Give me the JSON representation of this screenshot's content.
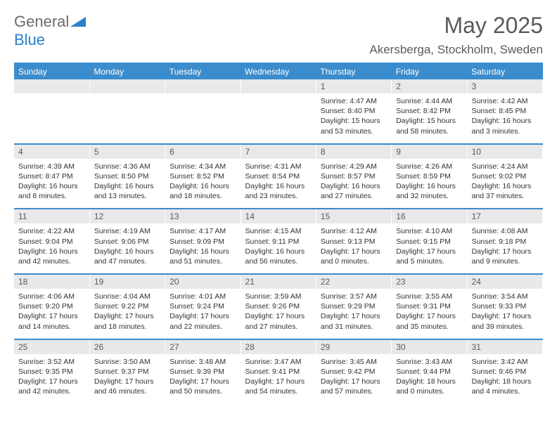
{
  "colors": {
    "accent": "#3b8ccc",
    "header_bg": "#3b8ccc",
    "header_text": "#ffffff",
    "daynum_bg": "#e9e9e9",
    "daynum_text": "#5a5a5a",
    "body_text": "#333333",
    "logo_gray": "#6b6b6b",
    "logo_blue": "#2a7fc9",
    "title_color": "#5a5a5a"
  },
  "logo": {
    "part1": "General",
    "part2": "Blue"
  },
  "title": "May 2025",
  "location": "Akersberga, Stockholm, Sweden",
  "weekdays": [
    "Sunday",
    "Monday",
    "Tuesday",
    "Wednesday",
    "Thursday",
    "Friday",
    "Saturday"
  ],
  "layout": {
    "first_weekday_index": 4,
    "num_days": 31,
    "columns": 7,
    "rows": 5,
    "daynum_fontsize": 12,
    "body_fontsize": 10.5,
    "header_fontsize": 12
  },
  "days": [
    {
      "n": 1,
      "sunrise": "4:47 AM",
      "sunset": "8:40 PM",
      "daylight": "15 hours and 53 minutes."
    },
    {
      "n": 2,
      "sunrise": "4:44 AM",
      "sunset": "8:42 PM",
      "daylight": "15 hours and 58 minutes."
    },
    {
      "n": 3,
      "sunrise": "4:42 AM",
      "sunset": "8:45 PM",
      "daylight": "16 hours and 3 minutes."
    },
    {
      "n": 4,
      "sunrise": "4:39 AM",
      "sunset": "8:47 PM",
      "daylight": "16 hours and 8 minutes."
    },
    {
      "n": 5,
      "sunrise": "4:36 AM",
      "sunset": "8:50 PM",
      "daylight": "16 hours and 13 minutes."
    },
    {
      "n": 6,
      "sunrise": "4:34 AM",
      "sunset": "8:52 PM",
      "daylight": "16 hours and 18 minutes."
    },
    {
      "n": 7,
      "sunrise": "4:31 AM",
      "sunset": "8:54 PM",
      "daylight": "16 hours and 23 minutes."
    },
    {
      "n": 8,
      "sunrise": "4:29 AM",
      "sunset": "8:57 PM",
      "daylight": "16 hours and 27 minutes."
    },
    {
      "n": 9,
      "sunrise": "4:26 AM",
      "sunset": "8:59 PM",
      "daylight": "16 hours and 32 minutes."
    },
    {
      "n": 10,
      "sunrise": "4:24 AM",
      "sunset": "9:02 PM",
      "daylight": "16 hours and 37 minutes."
    },
    {
      "n": 11,
      "sunrise": "4:22 AM",
      "sunset": "9:04 PM",
      "daylight": "16 hours and 42 minutes."
    },
    {
      "n": 12,
      "sunrise": "4:19 AM",
      "sunset": "9:06 PM",
      "daylight": "16 hours and 47 minutes."
    },
    {
      "n": 13,
      "sunrise": "4:17 AM",
      "sunset": "9:09 PM",
      "daylight": "16 hours and 51 minutes."
    },
    {
      "n": 14,
      "sunrise": "4:15 AM",
      "sunset": "9:11 PM",
      "daylight": "16 hours and 56 minutes."
    },
    {
      "n": 15,
      "sunrise": "4:12 AM",
      "sunset": "9:13 PM",
      "daylight": "17 hours and 0 minutes."
    },
    {
      "n": 16,
      "sunrise": "4:10 AM",
      "sunset": "9:15 PM",
      "daylight": "17 hours and 5 minutes."
    },
    {
      "n": 17,
      "sunrise": "4:08 AM",
      "sunset": "9:18 PM",
      "daylight": "17 hours and 9 minutes."
    },
    {
      "n": 18,
      "sunrise": "4:06 AM",
      "sunset": "9:20 PM",
      "daylight": "17 hours and 14 minutes."
    },
    {
      "n": 19,
      "sunrise": "4:04 AM",
      "sunset": "9:22 PM",
      "daylight": "17 hours and 18 minutes."
    },
    {
      "n": 20,
      "sunrise": "4:01 AM",
      "sunset": "9:24 PM",
      "daylight": "17 hours and 22 minutes."
    },
    {
      "n": 21,
      "sunrise": "3:59 AM",
      "sunset": "9:26 PM",
      "daylight": "17 hours and 27 minutes."
    },
    {
      "n": 22,
      "sunrise": "3:57 AM",
      "sunset": "9:29 PM",
      "daylight": "17 hours and 31 minutes."
    },
    {
      "n": 23,
      "sunrise": "3:55 AM",
      "sunset": "9:31 PM",
      "daylight": "17 hours and 35 minutes."
    },
    {
      "n": 24,
      "sunrise": "3:54 AM",
      "sunset": "9:33 PM",
      "daylight": "17 hours and 39 minutes."
    },
    {
      "n": 25,
      "sunrise": "3:52 AM",
      "sunset": "9:35 PM",
      "daylight": "17 hours and 42 minutes."
    },
    {
      "n": 26,
      "sunrise": "3:50 AM",
      "sunset": "9:37 PM",
      "daylight": "17 hours and 46 minutes."
    },
    {
      "n": 27,
      "sunrise": "3:48 AM",
      "sunset": "9:39 PM",
      "daylight": "17 hours and 50 minutes."
    },
    {
      "n": 28,
      "sunrise": "3:47 AM",
      "sunset": "9:41 PM",
      "daylight": "17 hours and 54 minutes."
    },
    {
      "n": 29,
      "sunrise": "3:45 AM",
      "sunset": "9:42 PM",
      "daylight": "17 hours and 57 minutes."
    },
    {
      "n": 30,
      "sunrise": "3:43 AM",
      "sunset": "9:44 PM",
      "daylight": "18 hours and 0 minutes."
    },
    {
      "n": 31,
      "sunrise": "3:42 AM",
      "sunset": "9:46 PM",
      "daylight": "18 hours and 4 minutes."
    }
  ],
  "labels": {
    "sunrise_prefix": "Sunrise: ",
    "sunset_prefix": "Sunset: ",
    "daylight_prefix": "Daylight: "
  }
}
